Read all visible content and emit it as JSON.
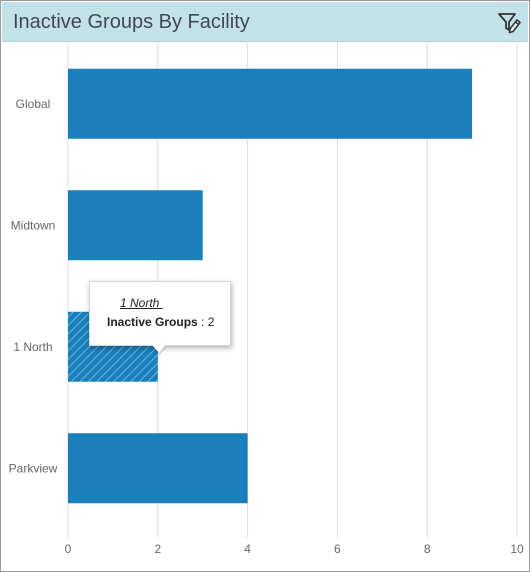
{
  "header": {
    "title": "Inactive Groups By Facility",
    "filter_icon": "filter-edit-icon"
  },
  "tooltip": {
    "title": "1 North ",
    "label": "Inactive Groups",
    "separator": " : ",
    "value": "2"
  },
  "colors": {
    "bar": "#1a7fba",
    "header_bg": "#c3e2e8",
    "grid": "#dcdcdc"
  },
  "chart_data": {
    "type": "bar",
    "orientation": "horizontal",
    "title": "",
    "xlabel": "",
    "ylabel": "",
    "categories": [
      "Global",
      "Midtown",
      "1 North",
      "Parkview"
    ],
    "series": [
      {
        "name": "Inactive Groups",
        "values": [
          9,
          3,
          2,
          4
        ]
      }
    ],
    "xlim": [
      0,
      10
    ],
    "xticks": [
      0,
      2,
      4,
      6,
      8,
      10
    ],
    "grid": true,
    "highlighted_category": "1 North"
  }
}
